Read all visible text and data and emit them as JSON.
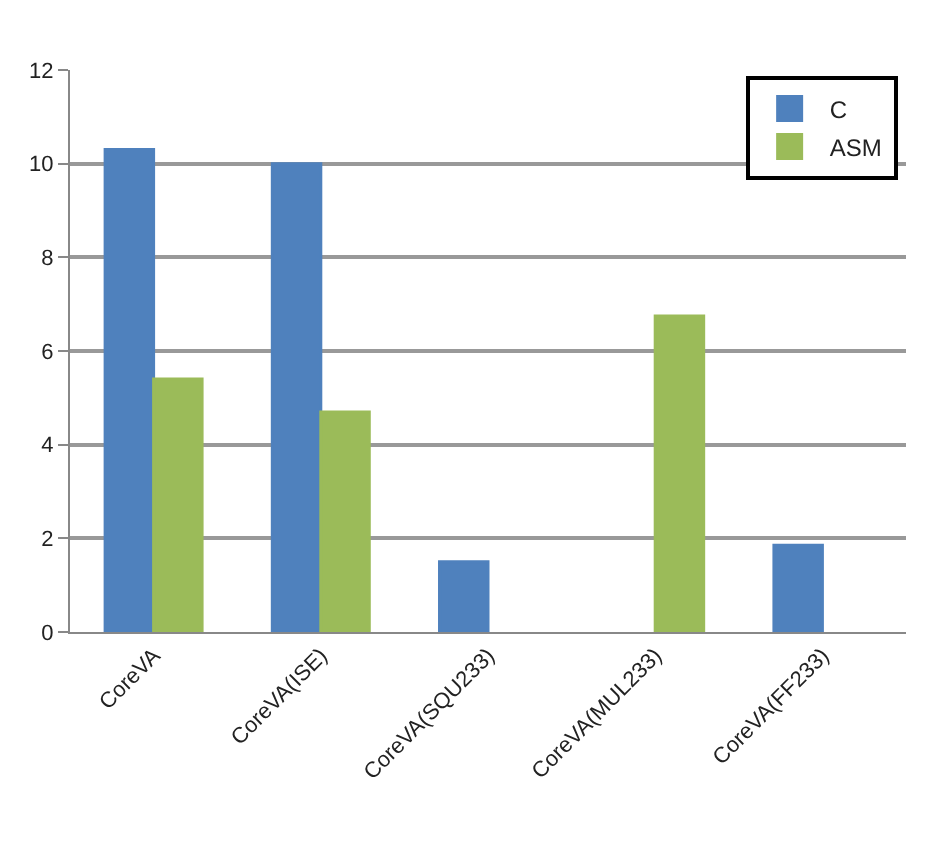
{
  "chart_data": {
    "type": "bar",
    "categories": [
      "CoreVA",
      "CoreVA(ISE)",
      "CoreVA(SQU233)",
      "CoreVA(MUL233)",
      "CoreVA(FF233)"
    ],
    "series": [
      {
        "name": "C",
        "color": "#4f81bd",
        "values": [
          10.3,
          10.0,
          1.5,
          null,
          1.85
        ]
      },
      {
        "name": "ASM",
        "color": "#9bbb59",
        "values": [
          5.4,
          4.7,
          null,
          6.75,
          null
        ]
      }
    ],
    "ylim": [
      0,
      12
    ],
    "yticks": [
      0,
      2,
      4,
      6,
      8,
      10,
      12
    ],
    "grid": "y",
    "legend": "top right"
  }
}
